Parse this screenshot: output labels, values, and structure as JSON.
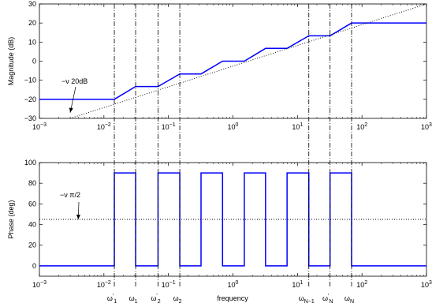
{
  "chart_data": [
    {
      "type": "line",
      "xlabel": "",
      "ylabel": "Magnitude (dB)",
      "xscale": "log",
      "xlim": [
        0.001,
        1000
      ],
      "ylim": [
        -30,
        30
      ],
      "yticks": [
        -30,
        -20,
        -10,
        0,
        10,
        20,
        30
      ],
      "ytick_labels": [
        "−30",
        "−20",
        "−10",
        "0",
        "10",
        "20",
        "30"
      ],
      "xticks": [
        0.001,
        0.01,
        0.1,
        1,
        10,
        100,
        1000
      ],
      "xtick_labels": [
        {
          "base": "10",
          "exp": "−3"
        },
        {
          "base": "10",
          "exp": "−2"
        },
        {
          "base": "10",
          "exp": "−1"
        },
        {
          "base": "10",
          "exp": "0"
        },
        {
          "base": "10",
          "exp": "1"
        },
        {
          "base": "10",
          "exp": "2"
        },
        {
          "base": "10",
          "exp": "3"
        }
      ],
      "grid": false,
      "series": [
        {
          "style": "solid",
          "color": "#0000ff",
          "x": [
            0.001,
            0.0145,
            0.031,
            0.069,
            0.15,
            0.32,
            0.69,
            1.5,
            3.2,
            6.9,
            15,
            32,
            69,
            1000
          ],
          "y": [
            -20,
            -20,
            -13.3,
            -13.3,
            -6.7,
            -6.7,
            0,
            0,
            6.7,
            6.7,
            13.3,
            13.3,
            20,
            20
          ]
        },
        {
          "style": "dotted",
          "color": "#000000",
          "x": [
            0.003,
            1000
          ],
          "y": [
            -30,
            30
          ]
        }
      ],
      "annotations": [
        {
          "text": "−ν 20dB",
          "arrow_to": [
            0.003,
            -27
          ]
        }
      ]
    },
    {
      "type": "line",
      "xlabel": "frequency",
      "ylabel": "Phase (deg)",
      "xscale": "log",
      "xlim": [
        0.001,
        1000
      ],
      "ylim": [
        -10,
        100
      ],
      "yticks": [
        0,
        20,
        40,
        60,
        80,
        100
      ],
      "ytick_labels": [
        "0",
        "20",
        "40",
        "60",
        "80",
        "100"
      ],
      "xticks": [
        0.001,
        0.01,
        0.1,
        1,
        10,
        100,
        1000
      ],
      "xtick_labels": [
        {
          "base": "10",
          "exp": "−3"
        },
        {
          "base": "10",
          "exp": "−2"
        },
        {
          "base": "10",
          "exp": "−1"
        },
        {
          "base": "10",
          "exp": "0"
        },
        {
          "base": "10",
          "exp": "1"
        },
        {
          "base": "10",
          "exp": "2"
        },
        {
          "base": "10",
          "exp": "3"
        }
      ],
      "grid": false,
      "series": [
        {
          "style": "solid",
          "color": "#0000ff",
          "x": [
            0.001,
            0.0145,
            0.0145,
            0.031,
            0.031,
            0.069,
            0.069,
            0.15,
            0.15,
            0.32,
            0.32,
            0.69,
            0.69,
            1.5,
            1.5,
            3.2,
            3.2,
            6.9,
            6.9,
            15,
            15,
            32,
            32,
            69,
            69,
            1000
          ],
          "y": [
            0,
            0,
            90,
            90,
            0,
            0,
            90,
            90,
            0,
            0,
            90,
            90,
            0,
            0,
            90,
            90,
            0,
            0,
            90,
            90,
            0,
            0,
            90,
            90,
            0,
            0
          ]
        },
        {
          "style": "dotted",
          "color": "#000000",
          "x": [
            0.001,
            1000
          ],
          "y": [
            45,
            45
          ]
        }
      ],
      "annotations": [
        {
          "text": "−ν π/2",
          "arrow_to": [
            0.004,
            45
          ]
        }
      ]
    }
  ],
  "frequency_markers": {
    "x": [
      0.0145,
      0.031,
      0.069,
      0.15,
      15,
      32,
      69
    ],
    "labels": [
      {
        "base": "ω",
        "sup": "'",
        "sub": "1"
      },
      {
        "base": "ω",
        "sup": "",
        "sub": "1"
      },
      {
        "base": "ω",
        "sup": "'",
        "sub": "2"
      },
      {
        "base": "ω",
        "sup": "",
        "sub": "2"
      },
      {
        "base": "ω",
        "sup": "",
        "sub": "N−1"
      },
      {
        "base": "ω",
        "sup": "'",
        "sub": "N"
      },
      {
        "base": "ω",
        "sup": "",
        "sub": "N"
      }
    ]
  }
}
